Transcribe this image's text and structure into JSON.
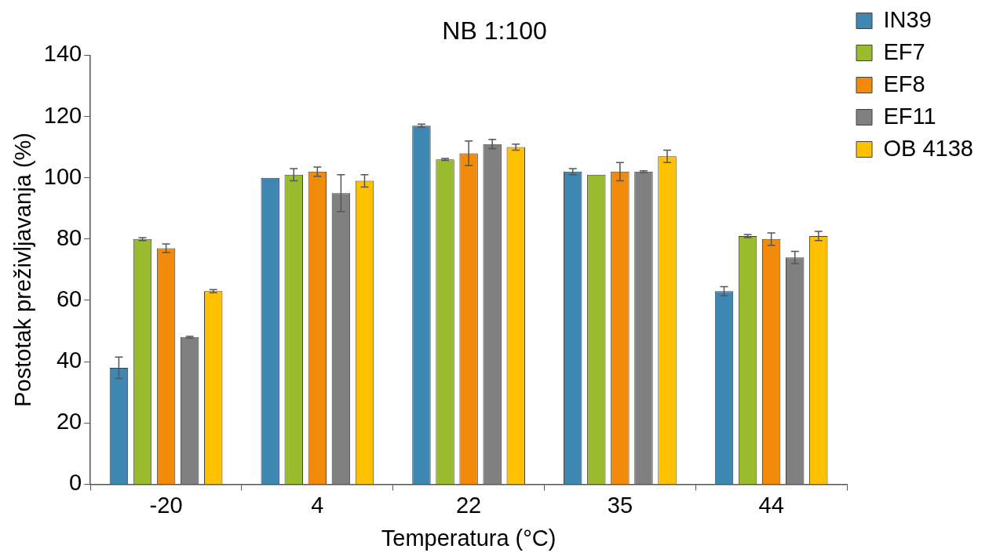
{
  "chart_data": {
    "type": "bar",
    "title": "NB 1:100",
    "xlabel": "Temperatura (°C)",
    "ylabel": "Postotak preživljavanja (%)",
    "categories": [
      "-20",
      "4",
      "22",
      "35",
      "44"
    ],
    "series": [
      {
        "name": "IN39",
        "color": "#3f87b3",
        "values": [
          38,
          100,
          117,
          102,
          63
        ],
        "errors": [
          3.5,
          null,
          0.5,
          1,
          1.5
        ]
      },
      {
        "name": "EF7",
        "color": "#9bbb2f",
        "values": [
          80,
          101,
          106,
          101,
          81
        ],
        "errors": [
          0.5,
          2,
          0.3,
          null,
          0.5
        ]
      },
      {
        "name": "EF8",
        "color": "#f28a0a",
        "values": [
          77,
          102,
          108,
          102,
          80
        ],
        "errors": [
          1.4,
          1.5,
          4,
          3,
          2
        ]
      },
      {
        "name": "EF11",
        "color": "#808080",
        "values": [
          48,
          95,
          111,
          102,
          74
        ],
        "errors": [
          0.3,
          6,
          1.5,
          0.3,
          2
        ]
      },
      {
        "name": "OB 4138",
        "color": "#ffc000",
        "values": [
          63,
          99,
          110,
          107,
          81
        ],
        "errors": [
          0.5,
          2,
          1,
          2,
          1.5
        ]
      }
    ],
    "ylim": [
      0,
      140
    ],
    "yticks": [
      0,
      20,
      40,
      60,
      80,
      100,
      120,
      140
    ],
    "grid": false,
    "legend": "top right"
  }
}
